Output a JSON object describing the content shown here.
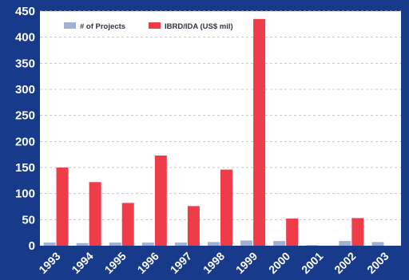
{
  "chart_data": {
    "type": "bar",
    "categories": [
      "1993",
      "1994",
      "1995",
      "1996",
      "1997",
      "1998",
      "1999",
      "2000",
      "2001",
      "2002",
      "2003"
    ],
    "series": [
      {
        "name": "# of Projects",
        "color": "#9fb1d2",
        "values": [
          6,
          5,
          6,
          6,
          6,
          7,
          10,
          9,
          1,
          9,
          7
        ]
      },
      {
        "name": "IBRD/IDA (US$ mil)",
        "color": "#ef3c49",
        "values": [
          150,
          122,
          82,
          173,
          76,
          146,
          435,
          52,
          0,
          53,
          0
        ]
      }
    ],
    "ylim": [
      0,
      450
    ],
    "yticks": [
      "0",
      "50",
      "100",
      "150",
      "200",
      "250",
      "300",
      "350",
      "400",
      "450"
    ],
    "grid": true,
    "legend_position": "top"
  }
}
